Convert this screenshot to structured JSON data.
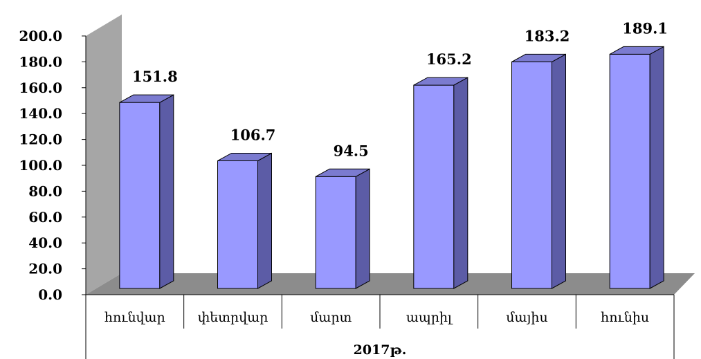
{
  "chart_data": {
    "type": "bar",
    "categories": [
      "հունվար",
      "փետրվար",
      "մարտ",
      "ապրիլ",
      "մայիս",
      "հունիս"
    ],
    "values": [
      151.8,
      106.7,
      94.5,
      165.2,
      183.2,
      189.1
    ],
    "data_labels": [
      "151.8",
      "106.7",
      "94.5",
      "165.2",
      "183.2",
      "189.1"
    ],
    "group_label": "2017թ.",
    "y_ticks": [
      "0.0",
      "20.0",
      "40.0",
      "60.0",
      "80.0",
      "100.0",
      "120.0",
      "140.0",
      "160.0",
      "180.0",
      "200.0"
    ],
    "ylim": [
      0,
      200
    ],
    "title": "",
    "xlabel": "",
    "ylabel": "",
    "grid": false,
    "legend": "none",
    "colors": {
      "bar_front": "#9999ff",
      "bar_side": "#5c5ca6",
      "bar_top": "#7b7bd0",
      "back_wall": "#a6a6a6",
      "floor": "#8c8c8c"
    }
  }
}
